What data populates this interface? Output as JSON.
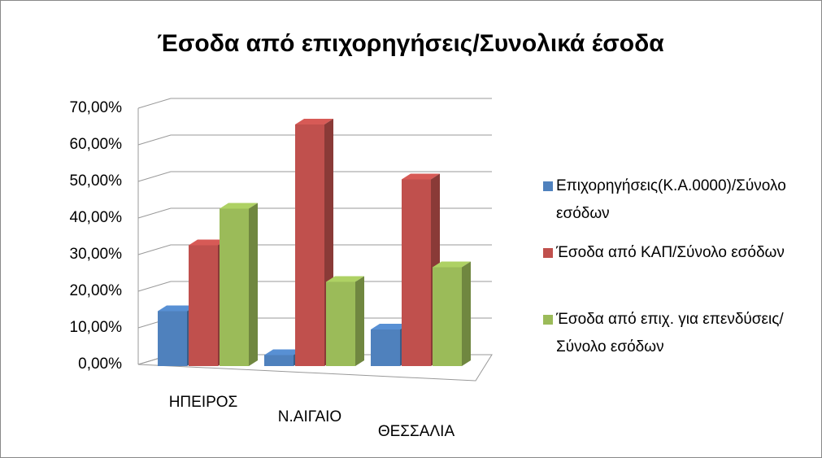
{
  "chart_data": {
    "type": "bar3d",
    "title": "Έσοδα από επιχορηγήσεις/Συνολικά έσοδα",
    "categories": [
      "ΗΠΕΙΡΟΣ",
      "Ν.ΑΙΓΑΙΟ",
      "ΘΕΣΣΑΛΙΑ"
    ],
    "series": [
      {
        "name": "Επιχορηγήσεις(Κ.Α.0000)/Σύνολο εσόδων",
        "color": "#4f81bd",
        "values": [
          15,
          3,
          10
        ]
      },
      {
        "name": "Έσοδα από ΚΑΠ/Σύνολο εσόδων",
        "color": "#c0504d",
        "values": [
          33,
          66,
          51
        ]
      },
      {
        "name": "Έσοδα από επιχ. για επενδύσεις/Σύνολο εσόδων",
        "color": "#9bbb59",
        "values": [
          43,
          23,
          27
        ]
      }
    ],
    "ylim": [
      0,
      70
    ],
    "yticks": [
      {
        "value": 0,
        "label": "0,00%"
      },
      {
        "value": 10,
        "label": "10,00%"
      },
      {
        "value": 20,
        "label": "20,00%"
      },
      {
        "value": 30,
        "label": "30,00%"
      },
      {
        "value": 40,
        "label": "40,00%"
      },
      {
        "value": 50,
        "label": "50,00%"
      },
      {
        "value": 60,
        "label": "60,00%"
      },
      {
        "value": 70,
        "label": "70,00%"
      }
    ],
    "grid": true,
    "legend": "right"
  }
}
